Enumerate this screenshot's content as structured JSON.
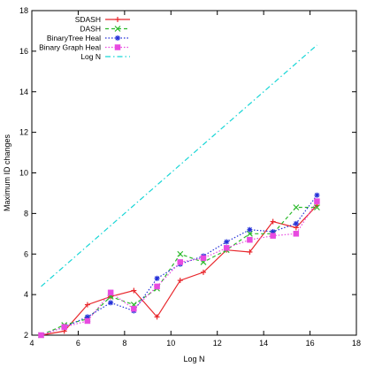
{
  "chart_data": {
    "type": "line",
    "title": "",
    "xlabel": "Log N",
    "ylabel": "Maximum ID changes",
    "xlim": [
      4,
      18
    ],
    "ylim": [
      2,
      18
    ],
    "xticks": [
      "4",
      "6",
      "8",
      "10",
      "12",
      "14",
      "16",
      "18"
    ],
    "yticks": [
      "2",
      "4",
      "6",
      "8",
      "10",
      "12",
      "14",
      "16",
      "18"
    ],
    "grid": false,
    "legend_position": "top-left",
    "series": [
      {
        "name": "SDASH",
        "color": "#e8262b",
        "marker": "plus",
        "dash": "solid",
        "x": [
          4.4,
          5.4,
          6.4,
          7.4,
          8.4,
          9.4,
          10.4,
          11.4,
          12.4,
          13.4,
          14.4,
          15.4,
          16.3
        ],
        "y": [
          2.0,
          2.2,
          3.5,
          3.9,
          4.2,
          2.9,
          4.7,
          5.1,
          6.2,
          6.1,
          7.6,
          7.3,
          8.4
        ]
      },
      {
        "name": "DASH",
        "color": "#2ab92a",
        "marker": "cross",
        "dash": "dashed",
        "x": [
          4.4,
          5.4,
          6.4,
          7.4,
          8.4,
          9.4,
          10.4,
          11.4,
          12.4,
          13.4,
          14.4,
          15.4,
          16.3
        ],
        "y": [
          2.0,
          2.5,
          2.8,
          3.9,
          3.5,
          4.3,
          6.0,
          5.6,
          6.2,
          7.0,
          7.0,
          8.3,
          8.3
        ]
      },
      {
        "name": "BinaryTree Heal",
        "color": "#2431d8",
        "marker": "asterisk",
        "dash": "dotted",
        "x": [
          4.4,
          5.4,
          6.4,
          7.4,
          8.4,
          9.4,
          10.4,
          11.4,
          12.4,
          13.4,
          14.4,
          15.4,
          16.3
        ],
        "y": [
          2.0,
          2.4,
          2.9,
          3.6,
          3.2,
          4.8,
          5.5,
          5.9,
          6.6,
          7.2,
          7.1,
          7.5,
          8.9
        ]
      },
      {
        "name": "Binary Graph Heal",
        "color": "#e84ae0",
        "marker": "square",
        "dash": "dotted",
        "x": [
          4.4,
          5.4,
          6.4,
          7.4,
          8.4,
          9.4,
          10.4,
          11.4,
          12.4,
          13.4,
          14.4,
          15.4,
          16.3
        ],
        "y": [
          2.0,
          2.4,
          2.7,
          4.1,
          3.3,
          4.4,
          5.6,
          5.8,
          6.3,
          6.7,
          6.9,
          7.0,
          8.6
        ]
      },
      {
        "name": "Log N",
        "color": "#18d6d6",
        "marker": "none",
        "dash": "dash-dot",
        "x": [
          4.4,
          16.3
        ],
        "y": [
          4.4,
          16.3
        ]
      }
    ]
  }
}
